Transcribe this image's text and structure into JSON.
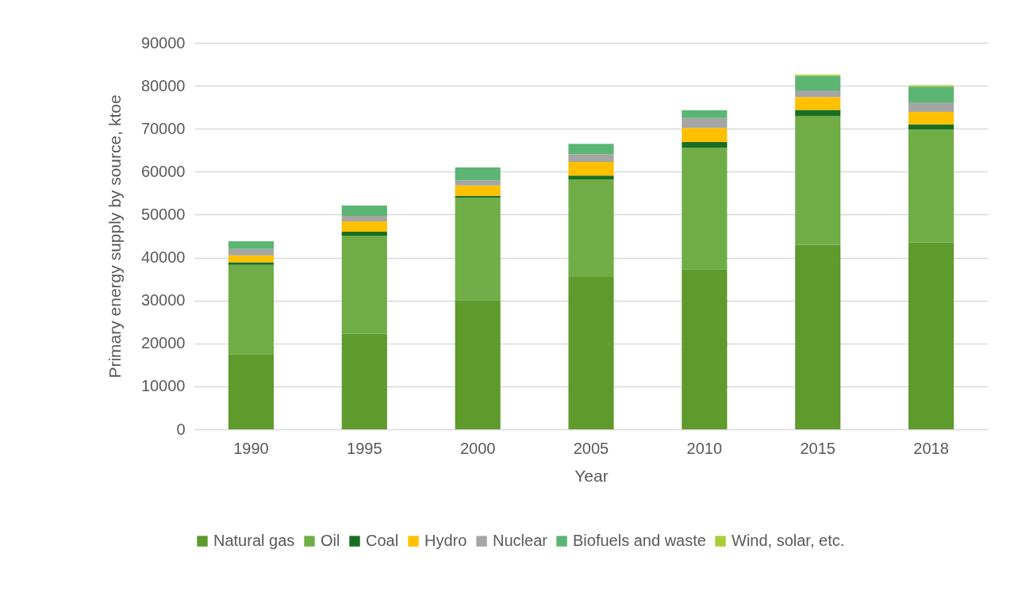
{
  "chart_data": {
    "type": "bar",
    "stacked": true,
    "xlabel": "Year",
    "ylabel": "Primary energy supply by source, ktoe",
    "categories": [
      "1990",
      "1995",
      "2000",
      "2005",
      "2010",
      "2015",
      "2018"
    ],
    "series": [
      {
        "name": "Natural gas",
        "color": "#5e9a2c",
        "values": [
          17500,
          22200,
          30100,
          35500,
          37300,
          42900,
          43500
        ]
      },
      {
        "name": "Oil",
        "color": "#70ad47",
        "values": [
          20800,
          22900,
          23800,
          22700,
          28300,
          30100,
          26300
        ]
      },
      {
        "name": "Coal",
        "color": "#1a6e24",
        "values": [
          600,
          900,
          500,
          900,
          1300,
          1400,
          1200
        ]
      },
      {
        "name": "Hydro",
        "color": "#ffc000",
        "values": [
          1600,
          2400,
          2400,
          3200,
          3300,
          3000,
          2900
        ]
      },
      {
        "name": "Nuclear",
        "color": "#a5a5a5",
        "values": [
          1500,
          1300,
          1200,
          1800,
          2300,
          1500,
          2100
        ]
      },
      {
        "name": "Biofuels and waste",
        "color": "#5cb573",
        "values": [
          1800,
          2400,
          3000,
          2400,
          1800,
          3400,
          3800
        ]
      },
      {
        "name": "Wind, solar, etc.",
        "color": "#a9cf38",
        "values": [
          0,
          0,
          0,
          0,
          0,
          300,
          300
        ]
      }
    ],
    "ylim": [
      0,
      90000
    ],
    "yticks": [
      0,
      10000,
      20000,
      30000,
      40000,
      50000,
      60000,
      70000,
      80000,
      90000
    ],
    "grid": "y",
    "legend": "bottom"
  }
}
